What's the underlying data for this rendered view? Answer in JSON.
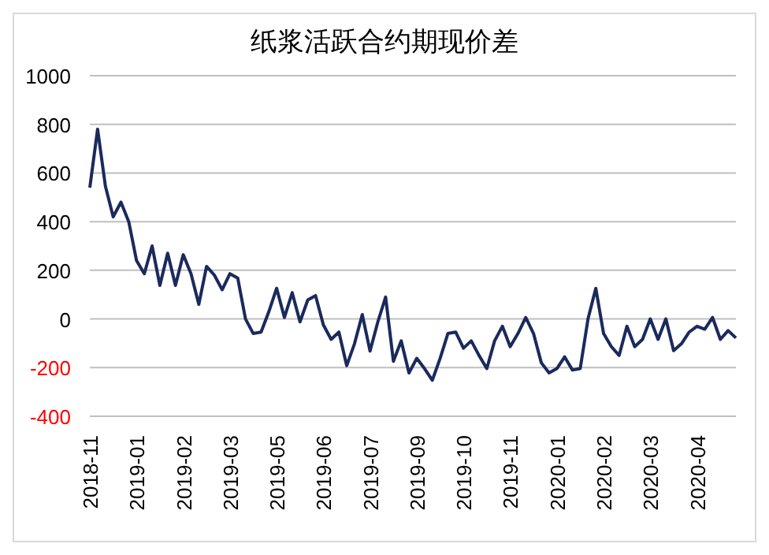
{
  "chart_data": {
    "type": "line",
    "title": "纸浆活跃合约期现价差",
    "categories": [
      "2018-11",
      null,
      null,
      null,
      null,
      null,
      "2019-01",
      null,
      null,
      null,
      null,
      null,
      "2019-02",
      null,
      null,
      null,
      null,
      null,
      "2019-03",
      null,
      null,
      null,
      null,
      null,
      "2019-05",
      null,
      null,
      null,
      null,
      null,
      "2019-06",
      null,
      null,
      null,
      null,
      null,
      "2019-07",
      null,
      null,
      null,
      null,
      null,
      "2019-09",
      null,
      null,
      null,
      null,
      null,
      "2019-10",
      null,
      null,
      null,
      null,
      null,
      "2019-11",
      null,
      null,
      null,
      null,
      null,
      "2020-01",
      null,
      null,
      null,
      null,
      null,
      "2020-02",
      null,
      null,
      null,
      null,
      null,
      "2020-03",
      null,
      null,
      null,
      null,
      null,
      "2020-04",
      null,
      null,
      null,
      null,
      null
    ],
    "series": [
      {
        "color": "#1b2a5c",
        "values": [
          540,
          780,
          546,
          420,
          480,
          400,
          240,
          186,
          300,
          138,
          270,
          138,
          264,
          186,
          60,
          216,
          180,
          120,
          186,
          168,
          0,
          -60,
          -54,
          30,
          126,
          6,
          108,
          -12,
          78,
          96,
          -24,
          -84,
          -54,
          -192,
          -102,
          18,
          -132,
          -12,
          90,
          -174,
          -90,
          -222,
          -162,
          -204,
          -252,
          -162,
          -60,
          -54,
          -120,
          -90,
          -150,
          -204,
          -90,
          -30,
          -114,
          -60,
          6,
          -60,
          -180,
          -222,
          -204,
          -156,
          -210,
          -204,
          0,
          126,
          -60,
          -114,
          -150,
          -30,
          -114,
          -84,
          0,
          -84,
          0,
          -130,
          -102,
          -54,
          -30,
          -42,
          6,
          -84,
          -48,
          -78
        ]
      }
    ],
    "ylim": [
      -400,
      1000
    ],
    "yticks": [
      -400,
      -200,
      0,
      200,
      400,
      600,
      800,
      1000
    ],
    "grid": "y",
    "marker": "none",
    "line_style": "solid"
  }
}
